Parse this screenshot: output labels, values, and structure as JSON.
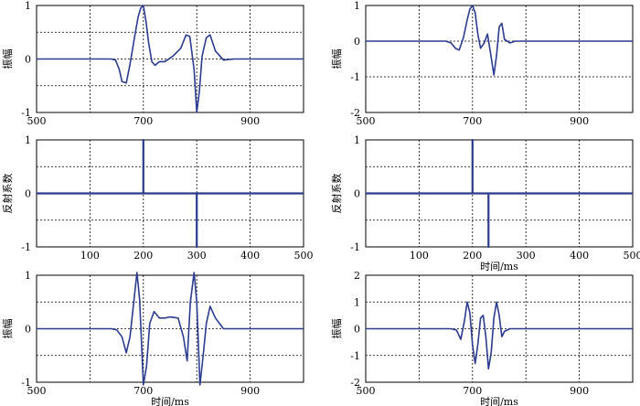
{
  "chart_data": [
    {
      "type": "line",
      "panel": "top-left",
      "ylabel": "振幅",
      "xlabel": "",
      "xlim": [
        500,
        1000
      ],
      "ylim": [
        -1,
        1
      ],
      "xticks": [
        500,
        700,
        900
      ],
      "yticks": [
        -1,
        0,
        1
      ],
      "grid": true,
      "series": [
        {
          "x": [
            500,
            640,
            648,
            655,
            660,
            668,
            675,
            683,
            690,
            695,
            700,
            705,
            710,
            716,
            722,
            730,
            740,
            755,
            770,
            780,
            787,
            795,
            800,
            805,
            810,
            818,
            825,
            835,
            850,
            870,
            1000
          ],
          "y": [
            0,
            0,
            -0.02,
            -0.2,
            -0.42,
            -0.45,
            -0.1,
            0.38,
            0.78,
            0.95,
            1.0,
            0.7,
            0.3,
            -0.05,
            -0.12,
            -0.05,
            -0.05,
            0.05,
            0.2,
            0.45,
            0.42,
            -0.2,
            -1.0,
            -0.6,
            0.05,
            0.4,
            0.45,
            0.15,
            -0.02,
            0,
            0
          ]
        }
      ]
    },
    {
      "type": "line",
      "panel": "top-right",
      "ylabel": "振幅",
      "xlabel": "",
      "xlim": [
        500,
        1000
      ],
      "ylim": [
        -2,
        1
      ],
      "xticks": [
        500,
        700,
        900
      ],
      "yticks": [
        -2,
        -1,
        0,
        1
      ],
      "grid": true,
      "series": [
        {
          "x": [
            500,
            650,
            660,
            668,
            675,
            683,
            690,
            695,
            700,
            705,
            710,
            715,
            722,
            728,
            735,
            740,
            745,
            750,
            755,
            760,
            770,
            780,
            1000
          ],
          "y": [
            0,
            0,
            -0.05,
            -0.2,
            -0.25,
            0.1,
            0.6,
            0.9,
            1.0,
            0.8,
            0.2,
            -0.2,
            -0.05,
            0.2,
            -0.45,
            -0.95,
            -0.4,
            0.4,
            0.5,
            0.05,
            -0.05,
            0,
            0
          ]
        }
      ]
    },
    {
      "type": "line",
      "panel": "middle-left",
      "ylabel": "反射系数",
      "xlabel": "",
      "xlim": [
        0,
        500
      ],
      "ylim": [
        -1,
        1
      ],
      "xticks": [
        100,
        200,
        300,
        400,
        500
      ],
      "yticks": [
        -1,
        0,
        1
      ],
      "grid": true,
      "series": [
        {
          "x": [
            0,
            200,
            200,
            200,
            300,
            300,
            300,
            500
          ],
          "y": [
            0,
            0,
            1,
            0,
            0,
            -1,
            0,
            0
          ]
        }
      ]
    },
    {
      "type": "line",
      "panel": "middle-right",
      "ylabel": "反射系数",
      "xlabel": "时间/ms",
      "xlim": [
        0,
        500
      ],
      "ylim": [
        -1,
        1
      ],
      "xticks": [
        100,
        200,
        300,
        400,
        500
      ],
      "yticks": [
        -1,
        0,
        1
      ],
      "grid": true,
      "series": [
        {
          "x": [
            0,
            200,
            200,
            200,
            230,
            230,
            230,
            500
          ],
          "y": [
            0,
            0,
            1,
            0,
            0,
            -1,
            0,
            0
          ]
        }
      ]
    },
    {
      "type": "line",
      "panel": "bottom-left",
      "ylabel": "振幅",
      "xlabel": "时间/ms",
      "xlim": [
        500,
        1000
      ],
      "ylim": [
        -1,
        1
      ],
      "xticks": [
        500,
        700,
        900
      ],
      "yticks": [
        -1,
        0,
        1
      ],
      "grid": true,
      "series": [
        {
          "x": [
            500,
            640,
            650,
            660,
            668,
            675,
            682,
            688,
            693,
            700,
            706,
            712,
            720,
            730,
            740,
            750,
            765,
            775,
            782,
            788,
            795,
            800,
            806,
            812,
            818,
            825,
            835,
            850,
            1000
          ],
          "y": [
            0,
            0,
            -0.02,
            -0.15,
            -0.45,
            -0.15,
            0.5,
            1.05,
            0.55,
            -1.05,
            -0.7,
            0.1,
            0.32,
            0.2,
            0.2,
            0.22,
            0.2,
            -0.15,
            -0.6,
            0.5,
            1.05,
            0.5,
            -1.05,
            -0.5,
            0.1,
            0.42,
            0.2,
            0,
            0
          ]
        }
      ]
    },
    {
      "type": "line",
      "panel": "bottom-right",
      "ylabel": "振幅",
      "xlabel": "时间/ms",
      "xlim": [
        500,
        1000
      ],
      "ylim": [
        -2,
        2
      ],
      "xticks": [
        500,
        700,
        900
      ],
      "yticks": [
        -2,
        -1,
        0,
        1,
        2
      ],
      "grid": true,
      "series": [
        {
          "x": [
            500,
            660,
            670,
            678,
            685,
            690,
            695,
            700,
            705,
            710,
            715,
            720,
            725,
            730,
            735,
            740,
            745,
            750,
            755,
            760,
            770,
            1000
          ],
          "y": [
            0,
            0,
            -0.05,
            -0.4,
            0.3,
            1.0,
            0.6,
            -0.6,
            -1.3,
            -0.6,
            0.4,
            0.5,
            -0.3,
            -1.5,
            -0.9,
            0.4,
            1.0,
            0.5,
            -0.3,
            -0.1,
            0,
            0
          ]
        }
      ]
    }
  ],
  "style": {
    "line_color": "#2b3b8f",
    "grid_color": "#000000",
    "axis_color": "#000000"
  }
}
